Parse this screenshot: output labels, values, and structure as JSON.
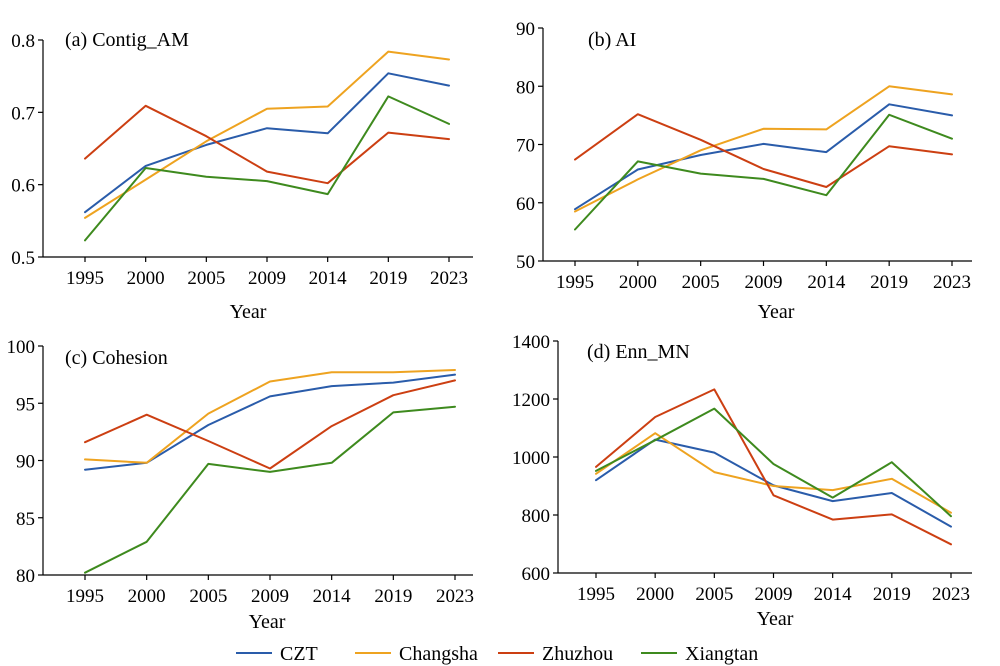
{
  "legend": [
    {
      "name": "CZT",
      "color": "#2a5caa"
    },
    {
      "name": "Changsha",
      "color": "#eea320"
    },
    {
      "name": "Zhuzhou",
      "color": "#cc3f12"
    },
    {
      "name": "Xiangtan",
      "color": "#3e8a1e"
    }
  ],
  "chart_data": [
    {
      "type": "line",
      "title": "(a) Contig_AM",
      "xlabel": "Year",
      "ylabel": "",
      "categories": [
        "1995",
        "2000",
        "2005",
        "2009",
        "2014",
        "2019",
        "2023"
      ],
      "ylim": [
        0.5,
        0.8
      ],
      "yticks": [
        0.5,
        0.6,
        0.7,
        0.8
      ],
      "ytick_labels": [
        "0.5",
        "0.6",
        "0.7",
        "0.8"
      ],
      "series": [
        {
          "name": "CZT",
          "color": "#2a5caa",
          "values": [
            0.562,
            0.626,
            0.655,
            0.678,
            0.671,
            0.754,
            0.737
          ]
        },
        {
          "name": "Changsha",
          "color": "#eea320",
          "values": [
            0.554,
            0.607,
            0.66,
            0.705,
            0.708,
            0.784,
            0.773
          ]
        },
        {
          "name": "Zhuzhou",
          "color": "#cc3f12",
          "values": [
            0.636,
            0.709,
            0.667,
            0.618,
            0.602,
            0.672,
            0.663
          ]
        },
        {
          "name": "Xiangtan",
          "color": "#3e8a1e",
          "values": [
            0.523,
            0.623,
            0.611,
            0.605,
            0.587,
            0.722,
            0.684
          ]
        }
      ]
    },
    {
      "type": "line",
      "title": "(b) AI",
      "xlabel": "Year",
      "ylabel": "",
      "categories": [
        "1995",
        "2000",
        "2005",
        "2009",
        "2014",
        "2019",
        "2023"
      ],
      "ylim": [
        50,
        90
      ],
      "yticks": [
        50,
        60,
        70,
        80,
        90
      ],
      "ytick_labels": [
        "50",
        "60",
        "70",
        "80",
        "90"
      ],
      "series": [
        {
          "name": "CZT",
          "color": "#2a5caa",
          "values": [
            58.9,
            65.7,
            68.2,
            70.1,
            68.7,
            76.9,
            75.0
          ]
        },
        {
          "name": "Changsha",
          "color": "#eea320",
          "values": [
            58.5,
            64.0,
            69.0,
            72.7,
            72.6,
            80.0,
            78.6
          ]
        },
        {
          "name": "Zhuzhou",
          "color": "#cc3f12",
          "values": [
            67.4,
            75.2,
            70.8,
            65.8,
            62.7,
            69.7,
            68.3
          ]
        },
        {
          "name": "Xiangtan",
          "color": "#3e8a1e",
          "values": [
            55.4,
            67.1,
            65.0,
            64.1,
            61.3,
            75.1,
            71.0
          ]
        }
      ]
    },
    {
      "type": "line",
      "title": "(c) Cohesion",
      "xlabel": "Year",
      "ylabel": "",
      "categories": [
        "1995",
        "2000",
        "2005",
        "2009",
        "2014",
        "2019",
        "2023"
      ],
      "ylim": [
        80,
        100
      ],
      "yticks": [
        80,
        85,
        90,
        95,
        100
      ],
      "ytick_labels": [
        "80",
        "85",
        "90",
        "95",
        "100"
      ],
      "series": [
        {
          "name": "CZT",
          "color": "#2a5caa",
          "values": [
            89.2,
            89.8,
            93.1,
            95.6,
            96.5,
            96.8,
            97.5
          ]
        },
        {
          "name": "Changsha",
          "color": "#eea320",
          "values": [
            90.1,
            89.8,
            94.1,
            96.9,
            97.7,
            97.7,
            97.9
          ]
        },
        {
          "name": "Zhuzhou",
          "color": "#cc3f12",
          "values": [
            91.6,
            94.0,
            91.7,
            89.3,
            93.0,
            95.7,
            97.0
          ]
        },
        {
          "name": "Xiangtan",
          "color": "#3e8a1e",
          "values": [
            80.2,
            82.9,
            89.7,
            89.0,
            89.8,
            94.2,
            94.7
          ]
        }
      ]
    },
    {
      "type": "line",
      "title": "(d) Enn_MN",
      "xlabel": "Year",
      "ylabel": "",
      "categories": [
        "1995",
        "2000",
        "2005",
        "2009",
        "2014",
        "2019",
        "2023"
      ],
      "ylim": [
        600,
        1400
      ],
      "yticks": [
        600,
        800,
        1000,
        1200,
        1400
      ],
      "ytick_labels": [
        "600",
        "800",
        "1000",
        "1200",
        "1400"
      ],
      "series": [
        {
          "name": "CZT",
          "color": "#2a5caa",
          "values": [
            920,
            1060,
            1015,
            902,
            848,
            876,
            760
          ]
        },
        {
          "name": "Changsha",
          "color": "#eea320",
          "values": [
            942,
            1082,
            948,
            900,
            886,
            925,
            808
          ]
        },
        {
          "name": "Zhuzhou",
          "color": "#cc3f12",
          "values": [
            966,
            1138,
            1233,
            868,
            784,
            802,
            699
          ]
        },
        {
          "name": "Xiangtan",
          "color": "#3e8a1e",
          "values": [
            952,
            1058,
            1167,
            976,
            860,
            982,
            796
          ]
        }
      ]
    }
  ]
}
